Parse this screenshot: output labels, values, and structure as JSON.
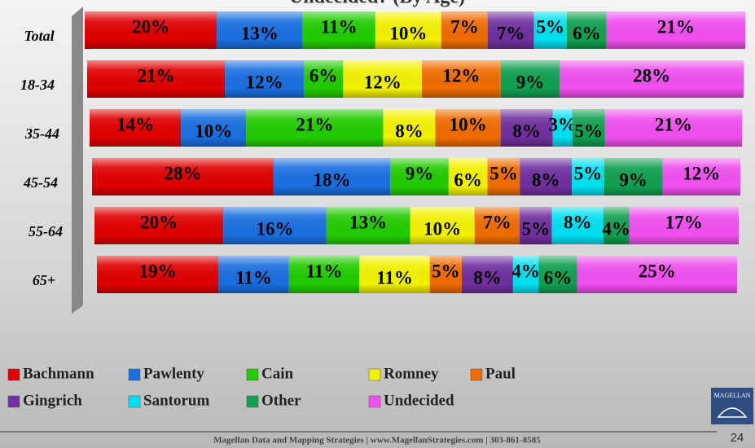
{
  "chart_data": {
    "type": "stacked-bar-horizontal",
    "title": "Undecided? (By Age)",
    "categories": [
      "Total",
      "18-34",
      "35-44",
      "45-54",
      "55-64",
      "65+"
    ],
    "xlim": [
      0,
      100
    ],
    "series": [
      {
        "name": "Bachmann",
        "color": "#e00000",
        "values": [
          20,
          21,
          14,
          28,
          20,
          19
        ],
        "value_labels": [
          "20%",
          "21%",
          "14%",
          "28%",
          "20%",
          "19%"
        ]
      },
      {
        "name": "Pawlenty",
        "color": "#1a6fe0",
        "values": [
          13,
          12,
          10,
          18,
          16,
          11
        ],
        "value_labels": [
          "13%",
          "12%",
          "10%",
          "18%",
          "16%",
          "11%"
        ]
      },
      {
        "name": "Cain",
        "color": "#22cc00",
        "values": [
          11,
          6,
          21,
          9,
          13,
          11
        ],
        "value_labels": [
          "11%",
          "6%",
          "21%",
          "9%",
          "13%",
          "11%"
        ]
      },
      {
        "name": "Romney",
        "color": "#f2f200",
        "values": [
          10,
          12,
          8,
          6,
          10,
          11
        ],
        "value_labels": [
          "10%",
          "12%",
          "8%",
          "6%",
          "10%",
          "11%"
        ]
      },
      {
        "name": "Paul",
        "color": "#ef6c00",
        "values": [
          7,
          12,
          10,
          5,
          7,
          5
        ],
        "value_labels": [
          "7%",
          "12%",
          "10%",
          "5%",
          "7%",
          "5%"
        ]
      },
      {
        "name": "Gingrich",
        "color": "#7030a0",
        "values": [
          7,
          0,
          8,
          8,
          5,
          8
        ],
        "value_labels": [
          "7%",
          null,
          "8%",
          "8%",
          "5%",
          "8%"
        ]
      },
      {
        "name": "Santorum",
        "color": "#00e0f0",
        "values": [
          5,
          0,
          3,
          5,
          8,
          4
        ],
        "value_labels": [
          "5%",
          null,
          "3%",
          "5%",
          "8%",
          "4%"
        ]
      },
      {
        "name": "Other",
        "color": "#10a050",
        "values": [
          6,
          9,
          5,
          9,
          4,
          6
        ],
        "value_labels": [
          "6%",
          "9%",
          "5%",
          "9%",
          "4%",
          "6%"
        ]
      },
      {
        "name": "Undecided",
        "color": "#f050f0",
        "values": [
          21,
          28,
          21,
          12,
          17,
          25
        ],
        "value_labels": [
          "21%",
          "28%",
          "21%",
          "12%",
          "17%",
          "25%"
        ]
      }
    ],
    "footer": "Magellan Data and Mapping Strategies | www.MagellanStrategies.com | 303-861-8585",
    "page_number": "24",
    "logo": "MAGELLAN"
  }
}
